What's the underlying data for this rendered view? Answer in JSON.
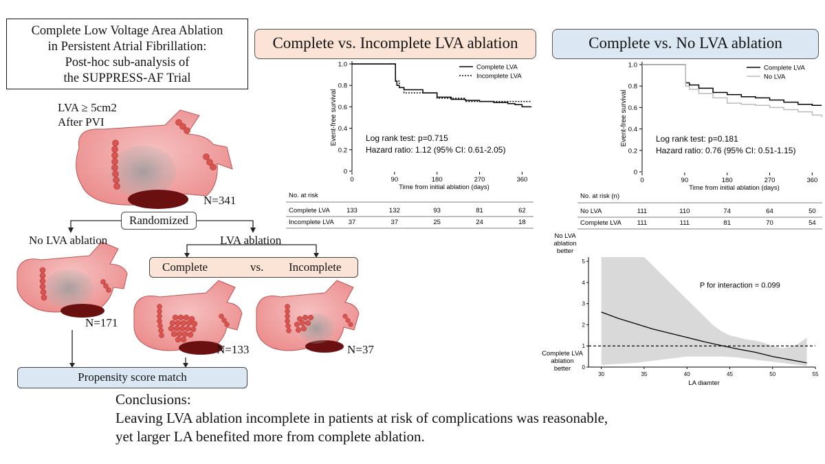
{
  "title_lines": [
    "Complete Low Voltage Area Ablation",
    "in Persistent Atrial Fibrillation:",
    "Post-hoc sub-analysis of",
    "the SUPPRESS-AF Trial"
  ],
  "headers": {
    "left": "Complete vs. Incomplete LVA ablation",
    "right": "Complete vs. No LVA ablation"
  },
  "flow": {
    "criteria_line1": "LVA ≥ 5cm2",
    "criteria_line2": "After PVI",
    "n_total": "N=341",
    "randomized": "Randomized",
    "no_lva": "No LVA ablation",
    "lva": "LVA ablation",
    "complete": "Complete",
    "vs": "vs.",
    "incomplete": "Incomplete",
    "n_no": "N=171",
    "n_complete": "N=133",
    "n_incomplete": "N=37",
    "psm": "Propensity score match"
  },
  "conclusions": {
    "heading": "Conclusions:",
    "line1": "Leaving LVA ablation incomplete in patients at risk of complications was reasonable,",
    "line2": "yet larger LA benefited more from complete ablation."
  },
  "colors": {
    "peach": "#fbe3d6",
    "blue": "#dbe8f4",
    "atrium": "#f2a6a6",
    "ablation_dot": "#d9534f",
    "band": "#d9d9d9"
  },
  "chart_data": [
    {
      "type": "line",
      "title": "Complete vs. Incomplete LVA ablation",
      "ylabel": "Event-free survival",
      "xlabel": "Time from initial ablation (days)",
      "xlim": [
        0,
        390
      ],
      "ylim": [
        0,
        1.0
      ],
      "xticks": [
        0,
        90,
        180,
        270,
        360
      ],
      "yticks": [
        0,
        0.2,
        0.4,
        0.6,
        0.8,
        1.0
      ],
      "ytick_labels": [
        "0",
        "0.2",
        "0.4",
        "0.6",
        "0.8",
        "1.0"
      ],
      "legend_position": "top-right",
      "series": [
        {
          "name": "Complete LVA",
          "style": "solid",
          "color": "#000000",
          "x": [
            0,
            90,
            92,
            95,
            100,
            110,
            130,
            150,
            180,
            210,
            240,
            270,
            300,
            330,
            345,
            360,
            380
          ],
          "y": [
            1.0,
            1.0,
            0.84,
            0.8,
            0.78,
            0.76,
            0.76,
            0.73,
            0.69,
            0.67,
            0.66,
            0.65,
            0.64,
            0.63,
            0.62,
            0.6,
            0.6
          ]
        },
        {
          "name": "Incomplete LVA",
          "style": "dotted",
          "color": "#000000",
          "x": [
            0,
            90,
            92,
            100,
            110,
            150,
            180,
            200,
            240,
            270,
            300,
            380
          ],
          "y": [
            1.0,
            1.0,
            0.84,
            0.78,
            0.73,
            0.73,
            0.68,
            0.68,
            0.65,
            0.65,
            0.65,
            0.65
          ]
        }
      ],
      "annotations": [
        "Log rank test: p=0.715",
        "Hazard ratio: 1.12 (95% CI: 0.61-2.05)"
      ],
      "risk_table": {
        "header": "No. at risk",
        "times": [
          "0",
          "90",
          "180",
          "270",
          "360"
        ],
        "rows": [
          {
            "label": "Complete LVA",
            "values": [
              "133",
              "132",
              "93",
              "81",
              "62"
            ]
          },
          {
            "label": "Incomplete LVA",
            "values": [
              "37",
              "37",
              "25",
              "24",
              "18"
            ]
          }
        ]
      }
    },
    {
      "type": "line",
      "title": "Complete vs. No LVA ablation",
      "ylabel": "Event-free survival",
      "xlabel": "Time from initial ablation (days)",
      "xlim": [
        0,
        390
      ],
      "ylim": [
        0,
        1.0
      ],
      "xticks": [
        0,
        90,
        180,
        270,
        360
      ],
      "yticks": [
        0,
        0.2,
        0.4,
        0.6,
        0.8,
        1.0
      ],
      "ytick_labels": [
        "0",
        "0.2",
        "0.4",
        "0.6",
        "0.8",
        "1.0"
      ],
      "legend_position": "top-right",
      "series": [
        {
          "name": "Complete LVA",
          "style": "solid",
          "color": "#000000",
          "x": [
            0,
            90,
            92,
            100,
            120,
            150,
            180,
            210,
            240,
            270,
            300,
            330,
            360,
            380
          ],
          "y": [
            1.0,
            1.0,
            0.83,
            0.81,
            0.78,
            0.74,
            0.72,
            0.7,
            0.69,
            0.67,
            0.65,
            0.63,
            0.62,
            0.62
          ]
        },
        {
          "name": "No LVA",
          "style": "solid",
          "color": "#bbbbbb",
          "x": [
            0,
            90,
            92,
            100,
            120,
            150,
            180,
            210,
            240,
            270,
            300,
            330,
            360,
            380
          ],
          "y": [
            1.0,
            1.0,
            0.8,
            0.77,
            0.73,
            0.69,
            0.64,
            0.63,
            0.62,
            0.6,
            0.58,
            0.56,
            0.53,
            0.51
          ]
        }
      ],
      "annotations": [
        "Log rank test: p=0.181",
        "Hazard ratio: 0.76 (95% CI: 0.51-1.15)"
      ],
      "risk_table": {
        "header": "No. at risk (n)",
        "times": [
          "0",
          "90",
          "180",
          "270",
          "360"
        ],
        "rows": [
          {
            "label": "No LVA",
            "values": [
              "111",
              "110",
              "74",
              "64",
              "50"
            ]
          },
          {
            "label": "Complete LVA",
            "values": [
              "111",
              "111",
              "81",
              "70",
              "54"
            ]
          }
        ]
      }
    },
    {
      "type": "line",
      "xlabel": "LA diamter",
      "ylabel_top": [
        "No LVA",
        "ablation",
        "better"
      ],
      "ylabel_bottom": [
        "Complete LVA",
        "ablation",
        "better"
      ],
      "xlim": [
        28.5,
        55
      ],
      "ylim": [
        0,
        5.2
      ],
      "xticks": [
        30,
        35,
        40,
        45,
        50,
        55
      ],
      "yticks": [
        0,
        1,
        2,
        3,
        4,
        5
      ],
      "reference_line": 1,
      "annotation": "P for interaction = 0.099",
      "series": [
        {
          "name": "",
          "x": [
            30,
            32,
            34,
            36,
            38,
            40,
            42,
            44,
            46,
            48,
            50,
            52,
            54
          ],
          "y": [
            2.6,
            2.3,
            2.05,
            1.8,
            1.6,
            1.4,
            1.2,
            1.02,
            0.85,
            0.7,
            0.5,
            0.35,
            0.2
          ]
        }
      ],
      "ci_upper": {
        "x": [
          30,
          34,
          35,
          36,
          37,
          38,
          39,
          40,
          41,
          42,
          43,
          44,
          45,
          46,
          47,
          48,
          49,
          50,
          51,
          52,
          53,
          54
        ],
        "y": [
          5.2,
          5.2,
          5.2,
          4.8,
          4.4,
          4.0,
          3.6,
          3.2,
          2.8,
          2.4,
          2.0,
          1.7,
          1.5,
          1.4,
          1.3,
          1.25,
          1.15,
          1.0,
          0.9,
          0.95,
          1.1,
          1.4
        ]
      },
      "ci_lower": {
        "x": [
          30,
          34,
          38,
          40,
          42,
          44,
          46,
          48,
          50,
          52,
          54
        ],
        "y": [
          0.1,
          0.2,
          0.4,
          0.5,
          0.5,
          0.5,
          0.45,
          0.35,
          0.25,
          0.15,
          0.05
        ]
      }
    }
  ]
}
